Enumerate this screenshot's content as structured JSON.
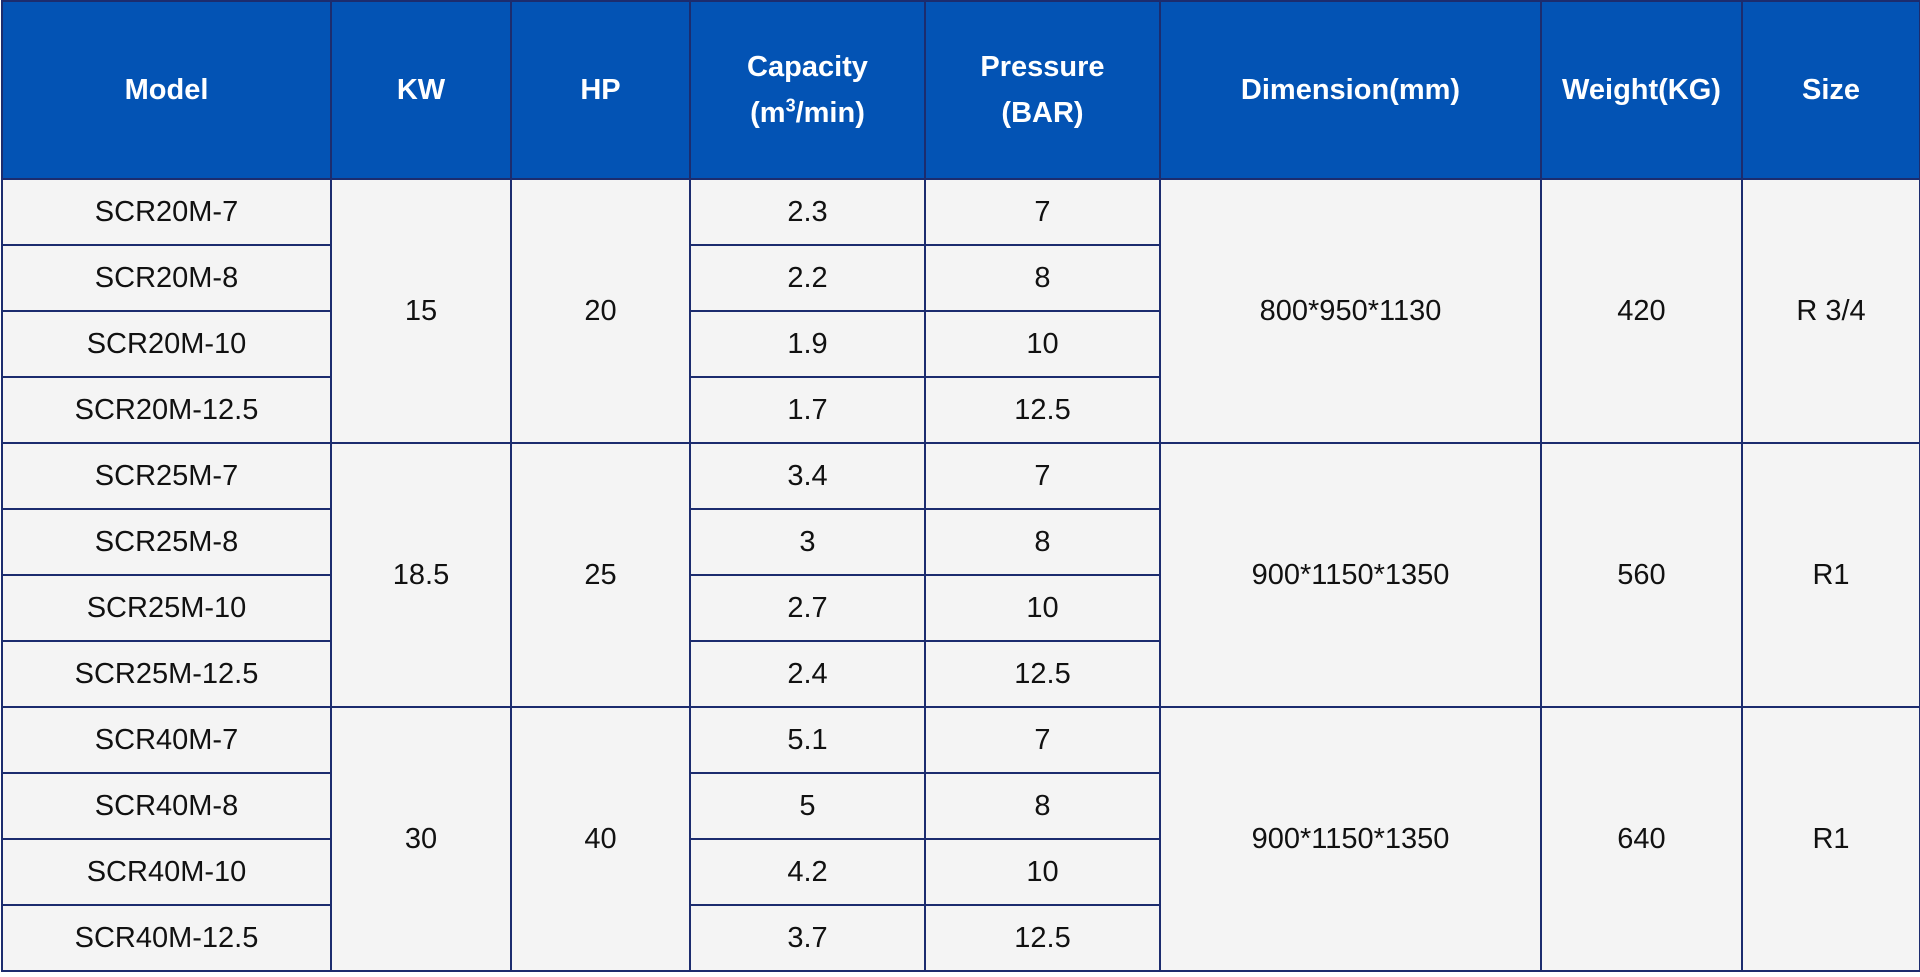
{
  "headers": {
    "model": "Model",
    "kw": "KW",
    "hp": "HP",
    "capacity_line1": "Capacity",
    "capacity_line2_pre": "(m",
    "capacity_line2_sup": "3",
    "capacity_line2_post": "/min)",
    "pressure_line1": "Pressure",
    "pressure_line2": "(BAR)",
    "dimension": "Dimension(mm)",
    "weight": "Weight(KG)",
    "size": "Size"
  },
  "groups": [
    {
      "kw": "15",
      "hp": "20",
      "dimension": "800*950*1130",
      "weight": "420",
      "size": "R 3/4",
      "rows": [
        {
          "model": "SCR20M-7",
          "capacity": "2.3",
          "pressure": "7"
        },
        {
          "model": "SCR20M-8",
          "capacity": "2.2",
          "pressure": "8"
        },
        {
          "model": "SCR20M-10",
          "capacity": "1.9",
          "pressure": "10"
        },
        {
          "model": "SCR20M-12.5",
          "capacity": "1.7",
          "pressure": "12.5"
        }
      ]
    },
    {
      "kw": "18.5",
      "hp": "25",
      "dimension": "900*1150*1350",
      "weight": "560",
      "size": "R1",
      "rows": [
        {
          "model": "SCR25M-7",
          "capacity": "3.4",
          "pressure": "7"
        },
        {
          "model": "SCR25M-8",
          "capacity": "3",
          "pressure": "8"
        },
        {
          "model": "SCR25M-10",
          "capacity": "2.7",
          "pressure": "10"
        },
        {
          "model": "SCR25M-12.5",
          "capacity": "2.4",
          "pressure": "12.5"
        }
      ]
    },
    {
      "kw": "30",
      "hp": "40",
      "dimension": "900*1150*1350",
      "weight": "640",
      "size": "R1",
      "rows": [
        {
          "model": "SCR40M-7",
          "capacity": "5.1",
          "pressure": "7"
        },
        {
          "model": "SCR40M-8",
          "capacity": "5",
          "pressure": "8"
        },
        {
          "model": "SCR40M-10",
          "capacity": "4.2",
          "pressure": "10"
        },
        {
          "model": "SCR40M-12.5",
          "capacity": "3.7",
          "pressure": "12.5"
        }
      ]
    }
  ]
}
